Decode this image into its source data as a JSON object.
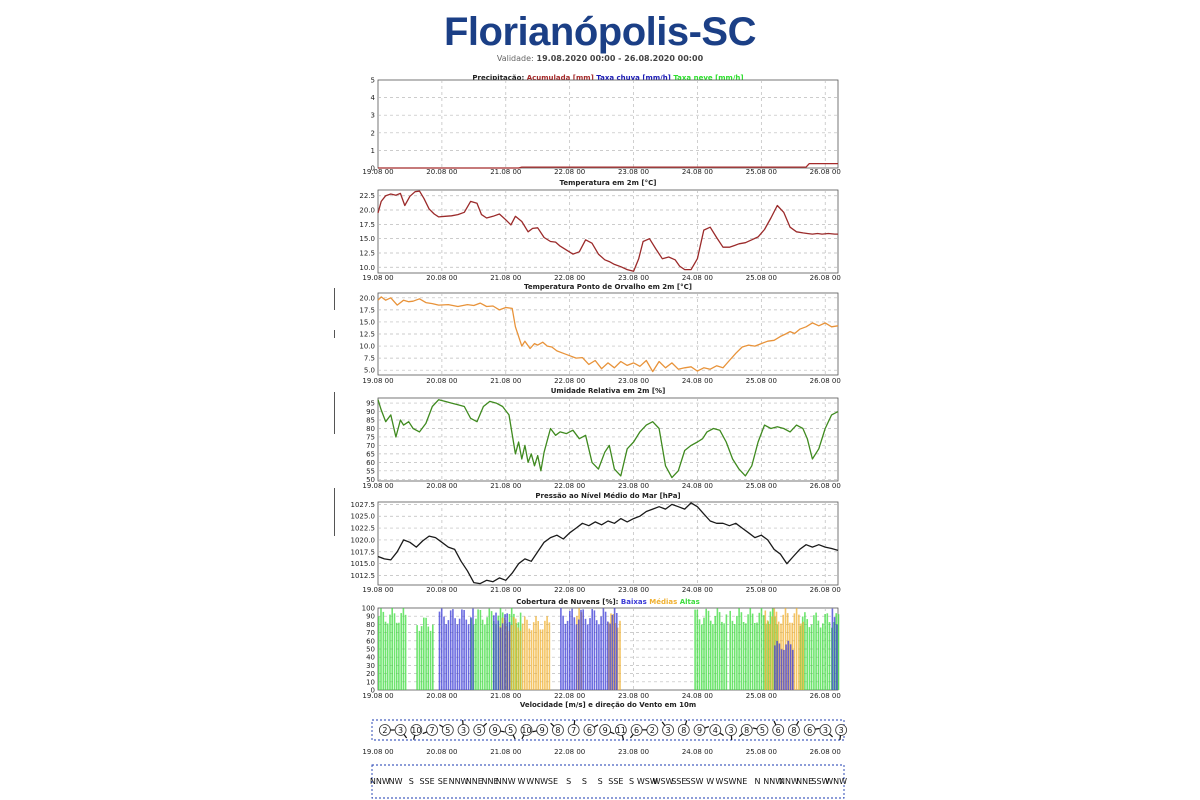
{
  "page": {
    "title": "Florianópolis-SC",
    "validity_label": "Validade:",
    "validity_value": "19.08.2020 00:00 - 26.08.2020 00:00"
  },
  "colors": {
    "title": "#1b3f86",
    "accumulated": "#a52a2a",
    "rain_rate": "#1a1ab4",
    "snow_rate": "#2ee02e",
    "temperature": "#9b2a2a",
    "dewpoint": "#e8933a",
    "humidity": "#3f8a1f",
    "pressure": "#1a1a1a",
    "clouds_low": "#3a3ad6",
    "clouds_mid": "#f0b030",
    "clouds_high": "#3edc3e",
    "wind_box": "#1a3ab0"
  },
  "x_ticks": [
    "19.08 00",
    "20.08 00",
    "21.08 00",
    "22.08 00",
    "23.08 00",
    "24.08 00",
    "25.08 00",
    "26.08 00"
  ],
  "chart_data": [
    {
      "id": "precip",
      "type": "line",
      "title_parts": [
        {
          "text": "Precipitação: ",
          "color": "#222222"
        },
        {
          "text": "Acumulada [mm] ",
          "color": "#a52a2a"
        },
        {
          "text": "Taxa chuva [mm/h] ",
          "color": "#1a1ab4"
        },
        {
          "text": "Taxa neve [mm/h]",
          "color": "#2ee02e"
        }
      ],
      "ylim": [
        0,
        5
      ],
      "yticks": [
        "0",
        "1",
        "2",
        "3",
        "4",
        "5"
      ],
      "grid": true,
      "series": [
        {
          "name": "Acumulada [mm]",
          "color": "#a52a2a",
          "x": [
            0,
            2.2,
            2.25,
            6.7,
            6.75,
            7.2
          ],
          "values": [
            0,
            0,
            0.05,
            0.05,
            0.25,
            0.25
          ]
        }
      ]
    },
    {
      "id": "temp",
      "type": "line",
      "title_parts": [
        {
          "text": "Temperatura em 2m [°C]",
          "color": "#222222"
        }
      ],
      "ylim": [
        9,
        23.5
      ],
      "yticks": [
        "10.0",
        "12.5",
        "15.0",
        "17.5",
        "20.0",
        "22.5"
      ],
      "grid": true,
      "series": [
        {
          "name": "Temperatura em 2m [°C]",
          "color": "#9b2a2a",
          "x": [
            0,
            0.05,
            0.12,
            0.2,
            0.28,
            0.35,
            0.42,
            0.5,
            0.58,
            0.65,
            0.72,
            0.8,
            0.88,
            0.95,
            1.05,
            1.15,
            1.25,
            1.35,
            1.45,
            1.55,
            1.62,
            1.7,
            1.8,
            1.9,
            2.0,
            2.08,
            2.15,
            2.25,
            2.35,
            2.42,
            2.5,
            2.6,
            2.7,
            2.78,
            2.85,
            2.95,
            3.05,
            3.15,
            3.25,
            3.35,
            3.45,
            3.55,
            3.62,
            3.7,
            3.8,
            3.9,
            4.0,
            4.08,
            4.15,
            4.25,
            4.35,
            4.45,
            4.55,
            4.65,
            4.72,
            4.8,
            4.9,
            5.0,
            5.1,
            5.2,
            5.3,
            5.4,
            5.5,
            5.58,
            5.65,
            5.75,
            5.85,
            5.95,
            6.05,
            6.15,
            6.25,
            6.35,
            6.45,
            6.55,
            6.65,
            6.72,
            6.8,
            6.88,
            6.95,
            7.05,
            7.15,
            7.2
          ],
          "values": [
            19.5,
            21.5,
            22.5,
            22.8,
            22.6,
            22.9,
            20.8,
            22.4,
            23.2,
            23.3,
            22.0,
            20.2,
            19.3,
            18.8,
            18.9,
            19.0,
            19.2,
            19.6,
            21.5,
            21.2,
            19.2,
            18.6,
            18.9,
            19.3,
            18.3,
            17.4,
            18.9,
            18.0,
            16.2,
            16.8,
            16.9,
            15.2,
            14.5,
            14.4,
            13.7,
            13.0,
            12.3,
            12.7,
            14.8,
            14.2,
            12.3,
            11.3,
            11.0,
            10.5,
            10.1,
            9.6,
            9.3,
            11.5,
            14.5,
            15.0,
            13.2,
            11.5,
            11.8,
            11.3,
            10.2,
            9.6,
            9.6,
            11.5,
            16.5,
            17.0,
            15.2,
            13.5,
            13.5,
            13.8,
            14.1,
            14.3,
            14.8,
            15.3,
            16.6,
            18.6,
            20.8,
            19.6,
            17.0,
            16.2,
            16.0,
            15.9,
            15.8,
            15.9,
            15.8,
            15.9,
            15.8,
            15.8
          ]
        }
      ]
    },
    {
      "id": "dew",
      "type": "line",
      "title_parts": [
        {
          "text": "Temperatura Ponto de Orvalho em 2m [°C]",
          "color": "#222222"
        }
      ],
      "ylim": [
        4,
        21
      ],
      "yticks": [
        "5.0",
        "7.5",
        "10.0",
        "12.5",
        "15.0",
        "17.5",
        "20.0"
      ],
      "grid": true,
      "series": [
        {
          "name": "Temperatura Ponto de Orvalho em 2m [°C]",
          "color": "#e8933a",
          "x": [
            0,
            0.05,
            0.12,
            0.2,
            0.3,
            0.4,
            0.48,
            0.55,
            0.65,
            0.75,
            0.85,
            0.95,
            1.1,
            1.25,
            1.4,
            1.5,
            1.6,
            1.7,
            1.8,
            1.9,
            2.0,
            2.1,
            2.15,
            2.2,
            2.25,
            2.3,
            2.38,
            2.45,
            2.5,
            2.58,
            2.65,
            2.72,
            2.8,
            2.9,
            3.0,
            3.1,
            3.2,
            3.3,
            3.4,
            3.5,
            3.6,
            3.7,
            3.8,
            3.9,
            4.0,
            4.1,
            4.2,
            4.3,
            4.4,
            4.5,
            4.6,
            4.7,
            4.8,
            4.9,
            5.0,
            5.1,
            5.2,
            5.3,
            5.4,
            5.5,
            5.6,
            5.7,
            5.8,
            5.9,
            6.0,
            6.1,
            6.2,
            6.3,
            6.38,
            6.45,
            6.52,
            6.6,
            6.7,
            6.8,
            6.9,
            7.0,
            7.1,
            7.2
          ],
          "values": [
            19.5,
            20.2,
            19.5,
            20.0,
            18.5,
            19.5,
            19.2,
            19.3,
            19.8,
            19.0,
            18.8,
            18.5,
            18.6,
            18.2,
            18.6,
            18.4,
            18.9,
            18.2,
            18.3,
            17.5,
            18.0,
            17.8,
            14.0,
            12.0,
            10.0,
            11.0,
            9.5,
            10.5,
            10.2,
            10.8,
            10.0,
            9.8,
            9.0,
            8.5,
            8.0,
            7.5,
            7.6,
            6.2,
            7.0,
            5.3,
            6.5,
            5.5,
            6.8,
            6.0,
            6.5,
            5.8,
            7.0,
            4.7,
            6.8,
            5.5,
            6.5,
            5.2,
            5.5,
            5.7,
            4.8,
            5.5,
            5.2,
            5.9,
            5.5,
            7.0,
            8.5,
            9.8,
            10.2,
            10.0,
            10.5,
            11.0,
            11.2,
            12.0,
            12.5,
            13.0,
            12.6,
            13.5,
            14.0,
            14.8,
            14.2,
            14.8,
            14.0,
            14.2
          ]
        }
      ]
    },
    {
      "id": "rh",
      "type": "line",
      "title_parts": [
        {
          "text": "Umidade Relativa em 2m [%]",
          "color": "#222222"
        }
      ],
      "ylim": [
        49,
        98
      ],
      "yticks": [
        "50",
        "55",
        "60",
        "65",
        "70",
        "75",
        "80",
        "85",
        "90",
        "95"
      ],
      "grid": true,
      "series": [
        {
          "name": "Umidade Relativa em 2m [%]",
          "color": "#3f8a1f",
          "x": [
            0,
            0.05,
            0.12,
            0.2,
            0.28,
            0.35,
            0.4,
            0.48,
            0.55,
            0.65,
            0.75,
            0.85,
            0.95,
            1.05,
            1.15,
            1.25,
            1.35,
            1.45,
            1.55,
            1.65,
            1.75,
            1.85,
            1.95,
            2.05,
            2.15,
            2.2,
            2.25,
            2.3,
            2.35,
            2.4,
            2.45,
            2.5,
            2.55,
            2.6,
            2.65,
            2.7,
            2.78,
            2.85,
            2.95,
            3.05,
            3.15,
            3.25,
            3.35,
            3.45,
            3.55,
            3.62,
            3.7,
            3.8,
            3.9,
            4.0,
            4.1,
            4.2,
            4.3,
            4.4,
            4.5,
            4.6,
            4.7,
            4.8,
            4.9,
            5.0,
            5.08,
            5.15,
            5.25,
            5.35,
            5.45,
            5.55,
            5.65,
            5.75,
            5.85,
            5.95,
            6.05,
            6.15,
            6.25,
            6.35,
            6.45,
            6.55,
            6.65,
            6.72,
            6.8,
            6.9,
            7.0,
            7.1,
            7.2
          ],
          "values": [
            97,
            91,
            84,
            88,
            75,
            85,
            82,
            84,
            80,
            78,
            83,
            93,
            97,
            96,
            95,
            94,
            93,
            86,
            84,
            93,
            96,
            95,
            93,
            88,
            65,
            72,
            62,
            70,
            60,
            65,
            58,
            64,
            55,
            66,
            73,
            80,
            76,
            78,
            77,
            79,
            74,
            76,
            60,
            56,
            66,
            70,
            56,
            52,
            68,
            72,
            78,
            82,
            84,
            80,
            58,
            51,
            55,
            67,
            70,
            72,
            74,
            78,
            80,
            79,
            72,
            62,
            56,
            52,
            58,
            72,
            82,
            80,
            81,
            80,
            78,
            82,
            80,
            74,
            62,
            68,
            80,
            88,
            90
          ]
        }
      ]
    },
    {
      "id": "mslp",
      "type": "line",
      "title_parts": [
        {
          "text": "Pressão ao Nível Médio do Mar [hPa]",
          "color": "#222222"
        }
      ],
      "ylim": [
        1010.5,
        1028
      ],
      "yticks": [
        "1012.5",
        "1015.0",
        "1017.5",
        "1020.0",
        "1022.5",
        "1025.0",
        "1027.5"
      ],
      "grid": true,
      "series": [
        {
          "name": "Pressão ao Nível Médio do Mar [hPa]",
          "color": "#1a1a1a",
          "x": [
            0,
            0.1,
            0.2,
            0.3,
            0.4,
            0.5,
            0.6,
            0.7,
            0.8,
            0.9,
            1.0,
            1.1,
            1.2,
            1.3,
            1.4,
            1.5,
            1.6,
            1.7,
            1.8,
            1.9,
            2.0,
            2.1,
            2.2,
            2.3,
            2.4,
            2.5,
            2.6,
            2.7,
            2.8,
            2.9,
            3.0,
            3.1,
            3.2,
            3.3,
            3.4,
            3.5,
            3.6,
            3.7,
            3.8,
            3.9,
            4.0,
            4.1,
            4.2,
            4.3,
            4.4,
            4.5,
            4.6,
            4.7,
            4.8,
            4.9,
            5.0,
            5.1,
            5.2,
            5.3,
            5.4,
            5.5,
            5.6,
            5.7,
            5.8,
            5.9,
            6.0,
            6.1,
            6.2,
            6.3,
            6.4,
            6.5,
            6.6,
            6.7,
            6.8,
            6.9,
            7.0,
            7.1,
            7.2
          ],
          "values": [
            1016.5,
            1016.0,
            1015.8,
            1017.5,
            1020.0,
            1019.5,
            1018.5,
            1019.8,
            1020.8,
            1020.5,
            1019.5,
            1018.5,
            1018.0,
            1015.5,
            1013.5,
            1011.0,
            1010.8,
            1011.5,
            1011.2,
            1012.0,
            1011.5,
            1013.0,
            1015.0,
            1016.0,
            1015.5,
            1017.5,
            1019.5,
            1020.5,
            1021.0,
            1020.2,
            1021.5,
            1022.5,
            1023.5,
            1023.0,
            1023.8,
            1023.2,
            1024.0,
            1023.5,
            1024.5,
            1023.8,
            1024.5,
            1025.0,
            1026.0,
            1026.5,
            1027.0,
            1026.5,
            1027.5,
            1027.0,
            1026.5,
            1027.8,
            1027.0,
            1025.5,
            1024.0,
            1023.5,
            1023.5,
            1023.0,
            1023.5,
            1022.5,
            1021.5,
            1020.5,
            1021.0,
            1020.0,
            1018.0,
            1017.0,
            1015.0,
            1016.5,
            1018.0,
            1019.0,
            1018.5,
            1019.0,
            1018.5,
            1018.2,
            1017.8
          ]
        }
      ]
    },
    {
      "id": "clouds",
      "type": "bar",
      "title_parts": [
        {
          "text": "Cobertura de Nuvens [%]: ",
          "color": "#222222"
        },
        {
          "text": "Baixas ",
          "color": "#3a3ad6"
        },
        {
          "text": "Médias ",
          "color": "#f0b030"
        },
        {
          "text": "Altas",
          "color": "#3edc3e"
        }
      ],
      "ylim": [
        0,
        100
      ],
      "yticks": [
        "0",
        "10",
        "20",
        "30",
        "40",
        "50",
        "60",
        "70",
        "80",
        "90",
        "100"
      ],
      "grid": true,
      "series": [
        {
          "name": "Altas",
          "color": "#3edc3e",
          "x_ranges": [
            [
              0,
              0.45
            ],
            [
              0.6,
              0.85
            ],
            [
              1.45,
              2.25
            ],
            [
              4.95,
              5.45
            ],
            [
              5.5,
              6.25
            ],
            [
              6.6,
              7.2
            ]
          ],
          "values": [
            100,
            90,
            100,
            100,
            100,
            95
          ]
        },
        {
          "name": "Médias",
          "color": "#f0b030",
          "x_ranges": [
            [
              1.9,
              2.7
            ],
            [
              3.1,
              3.2
            ],
            [
              3.6,
              3.8
            ],
            [
              6.05,
              6.65
            ]
          ],
          "values": [
            90,
            100,
            95,
            100
          ]
        },
        {
          "name": "Baixas",
          "color": "#3a3ad6",
          "x_ranges": [
            [
              0.95,
              1.5
            ],
            [
              1.8,
              2.05
            ],
            [
              2.85,
              3.75
            ],
            [
              6.2,
              6.5
            ],
            [
              7.1,
              7.2
            ]
          ],
          "values": [
            100,
            95,
            100,
            60,
            100
          ]
        }
      ]
    },
    {
      "id": "wind",
      "type": "table",
      "title_parts": [
        {
          "text": "Velocidade [m/s] e direção do Vento em 10m",
          "color": "#222222"
        }
      ],
      "speeds": [
        "2",
        "3",
        "10",
        "7",
        "5",
        "3",
        "5",
        "9",
        "5",
        "10",
        "9",
        "8",
        "7",
        "6",
        "9",
        "11",
        "6",
        "2",
        "3",
        "8",
        "9",
        "4",
        "3",
        "8",
        "5",
        "6",
        "8",
        "6",
        "3",
        "3"
      ],
      "directions": [
        "NNW",
        "NW",
        "S",
        "SSE",
        "SE",
        "NNW",
        "NNE",
        "NNE",
        "NNW",
        "W",
        "WNW",
        "SE",
        "S",
        "S",
        "S",
        "SSE",
        "S",
        "WSW",
        "WSW",
        "SSE",
        "SSW",
        "W",
        "WSW",
        "NE",
        "N",
        "NNW",
        "NNW",
        "NNE",
        "SSW",
        "WNW"
      ]
    }
  ]
}
